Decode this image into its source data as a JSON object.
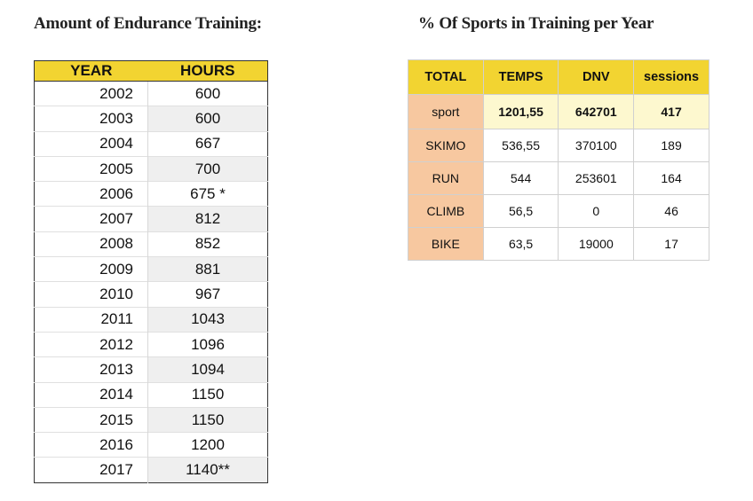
{
  "left": {
    "title": "Amount of Endurance Training:",
    "headers": [
      "YEAR",
      "HOURS"
    ],
    "rows": [
      [
        "2002",
        "600"
      ],
      [
        "2003",
        "600"
      ],
      [
        "2004",
        "667"
      ],
      [
        "2005",
        "700"
      ],
      [
        "2006",
        "675 *"
      ],
      [
        "2007",
        "812"
      ],
      [
        "2008",
        "852"
      ],
      [
        "2009",
        "881"
      ],
      [
        "2010",
        "967"
      ],
      [
        "2011",
        "1043"
      ],
      [
        "2012",
        "1096"
      ],
      [
        "2013",
        "1094"
      ],
      [
        "2014",
        "1150"
      ],
      [
        "2015",
        "1150"
      ],
      [
        "2016",
        "1200"
      ],
      [
        "2017",
        "1140**"
      ]
    ]
  },
  "right": {
    "title": "% Of Sports in Training per Year",
    "headers": [
      "TOTAL",
      "TEMPS",
      "DNV",
      "sessions"
    ],
    "rows": [
      [
        "sport",
        "1201,55",
        "642701",
        "417"
      ],
      [
        "SKIMO",
        "536,55",
        "370100",
        "189"
      ],
      [
        "RUN",
        "544",
        "253601",
        "164"
      ],
      [
        "CLIMB",
        "56,5",
        "0",
        "46"
      ],
      [
        "BIKE",
        "63,5",
        "19000",
        "17"
      ]
    ]
  },
  "colors": {
    "header": "#f2d431",
    "label": "#f7c8a0",
    "highlight_row": "#fdf8cf"
  }
}
